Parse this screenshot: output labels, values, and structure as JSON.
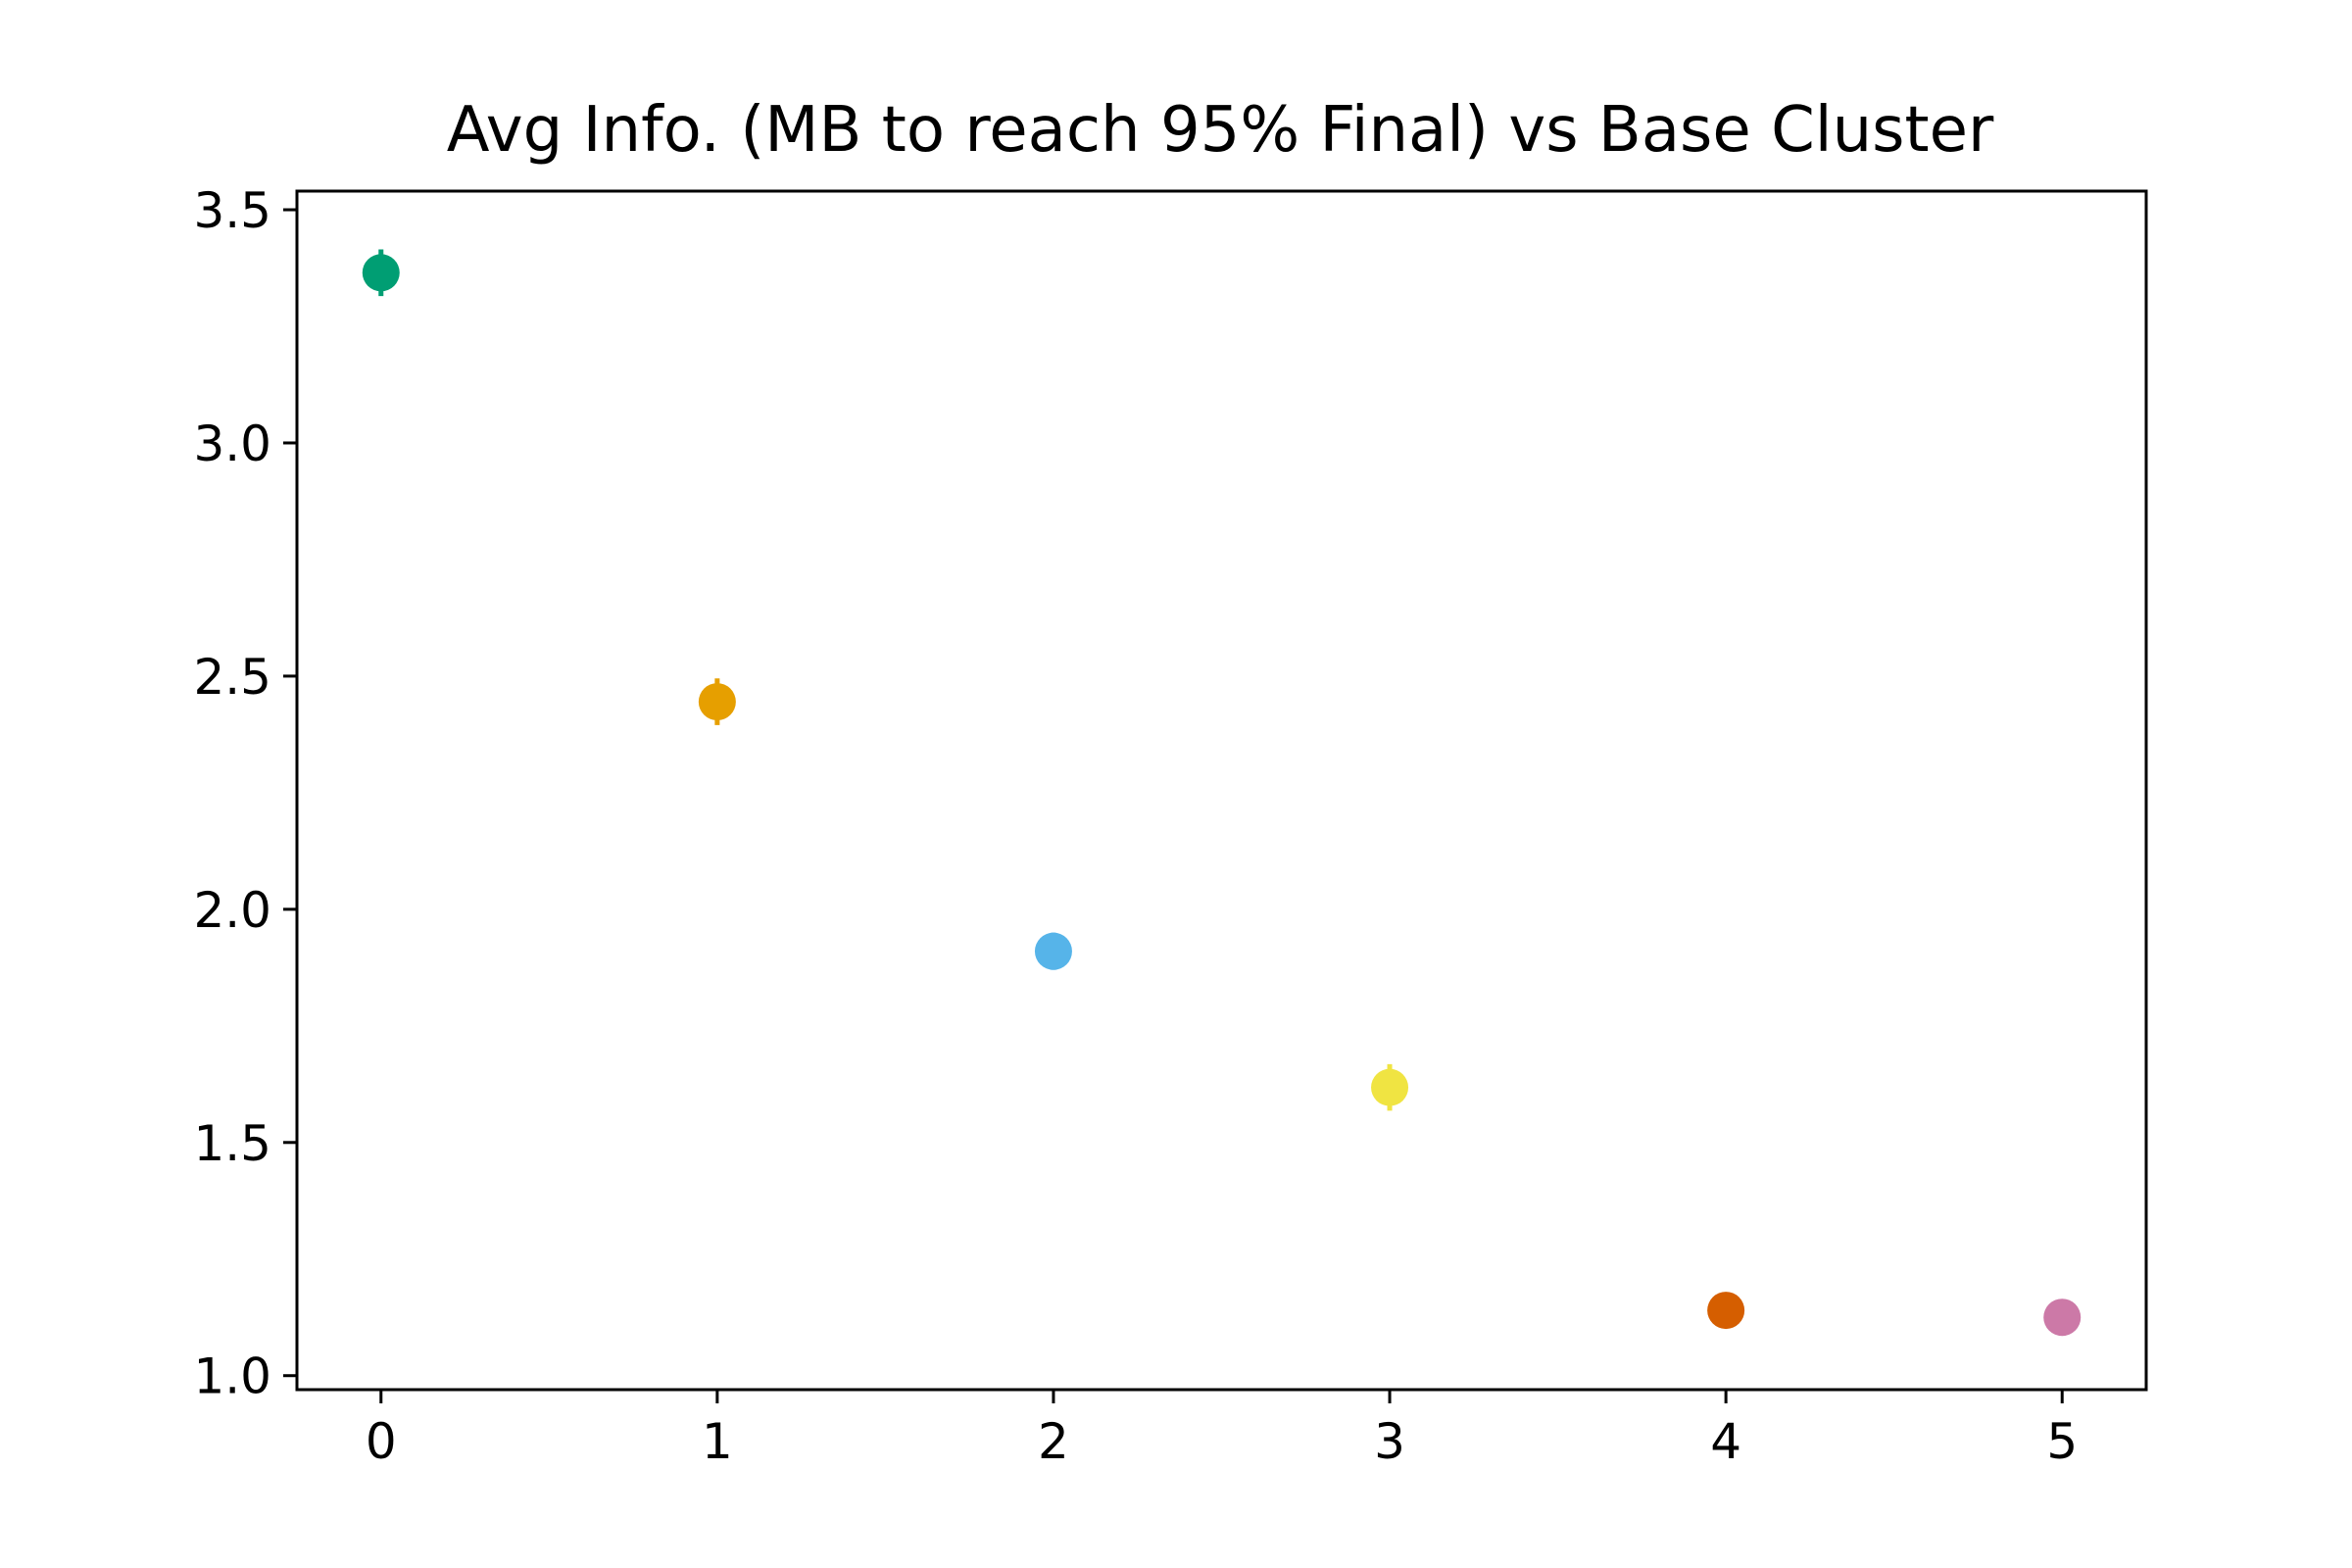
{
  "chart_data": {
    "type": "scatter",
    "title": "Avg Info. (MB to reach 95% Final) vs Base Cluster",
    "xlabel": "",
    "ylabel": "",
    "xlim": [
      -0.25,
      5.25
    ],
    "ylim": [
      0.97,
      3.54
    ],
    "grid": false,
    "xticks": [
      0,
      1,
      2,
      3,
      4,
      5
    ],
    "xtick_labels": [
      "0",
      "1",
      "2",
      "3",
      "4",
      "5"
    ],
    "yticks": [
      1.0,
      1.5,
      2.0,
      2.5,
      3.0,
      3.5
    ],
    "ytick_labels": [
      "1.0",
      "1.5",
      "2.0",
      "2.5",
      "3.0",
      "3.5"
    ],
    "points": [
      {
        "x": 0,
        "y": 3.365,
        "err": 0.05,
        "color": "#009e73"
      },
      {
        "x": 1,
        "y": 2.445,
        "err": 0.05,
        "color": "#e69f00"
      },
      {
        "x": 2,
        "y": 1.91,
        "err": 0.04,
        "color": "#56b4e9"
      },
      {
        "x": 3,
        "y": 1.618,
        "err": 0.05,
        "color": "#f0e442"
      },
      {
        "x": 4,
        "y": 1.14,
        "err": 0.03,
        "color": "#d55e00"
      },
      {
        "x": 5,
        "y": 1.125,
        "err": 0.0,
        "color": "#cc79a7"
      }
    ]
  }
}
